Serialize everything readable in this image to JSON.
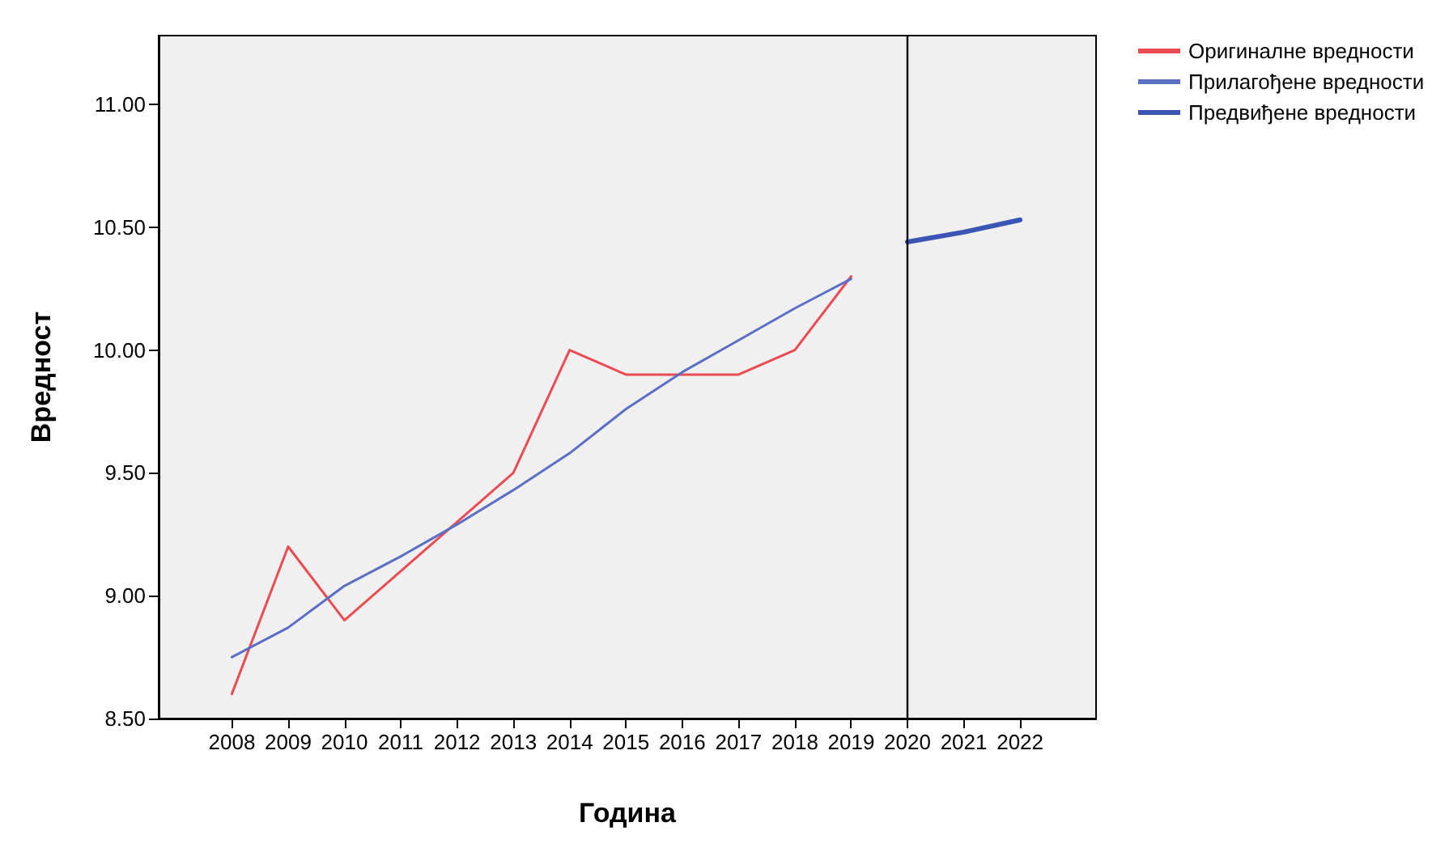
{
  "chart_data": {
    "type": "line",
    "xlabel": "Година",
    "ylabel": "Вредност",
    "xlim": [
      2006.7,
      2023.35
    ],
    "xticks": [
      2008,
      2009,
      2010,
      2011,
      2012,
      2013,
      2014,
      2015,
      2016,
      2017,
      2018,
      2019,
      2020,
      2021,
      2022
    ],
    "ylim": [
      8.5,
      11.28
    ],
    "yticks": [
      {
        "value": 8.5,
        "label": "8.50"
      },
      {
        "value": 9,
        "label": "9.00"
      },
      {
        "value": 9.5,
        "label": "9.50"
      },
      {
        "value": 10,
        "label": "10.00"
      },
      {
        "value": 10.5,
        "label": "10.50"
      },
      {
        "value": 11,
        "label": "11.00"
      }
    ],
    "grid": false,
    "legend": "top right",
    "marker": "none",
    "line_style": "solid",
    "ref_lines": [
      {
        "axis": "x",
        "value": 2020,
        "label": null,
        "color": "#000000"
      }
    ],
    "series": [
      {
        "name": "Оригиналне вредности",
        "color": "#ec4b52",
        "x": [
          2008,
          2009,
          2010,
          2011,
          2012,
          2013,
          2014,
          2015,
          2016,
          2017,
          2018,
          2019
        ],
        "values": [
          8.6,
          9.2,
          8.9,
          9.1,
          9.3,
          9.5,
          10.0,
          9.9,
          9.9,
          9.9,
          10.0,
          10.3
        ]
      },
      {
        "name": "Прилагођене вредности",
        "color": "#5b6fc4",
        "x": [
          2008,
          2009,
          2010,
          2011,
          2012,
          2013,
          2014,
          2015,
          2016,
          2017,
          2018,
          2019
        ],
        "values": [
          8.75,
          8.87,
          9.04,
          9.16,
          9.29,
          9.43,
          9.58,
          9.76,
          9.91,
          10.04,
          10.17,
          10.29
        ]
      },
      {
        "name": "Предвиђене вредности",
        "color": "#3a55b4",
        "x": [
          2020,
          2021,
          2022
        ],
        "values": [
          10.44,
          10.48,
          10.53
        ]
      }
    ]
  }
}
